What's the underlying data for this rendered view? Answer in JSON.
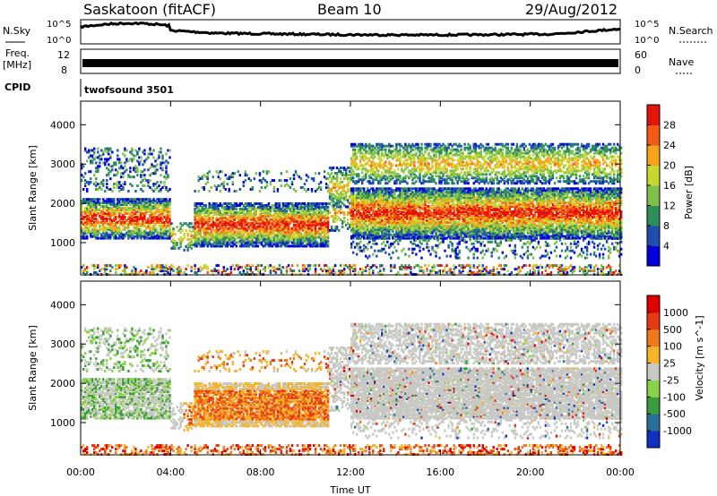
{
  "header": {
    "station": "Saskatoon (fitACF)",
    "beam": "Beam 10",
    "date": "29/Aug/2012"
  },
  "strips": {
    "nsky_label": "N.Sky",
    "nsearch_label": "N.Search",
    "nsky_ticks": [
      "10^5",
      "10^0"
    ],
    "nsearch_ticks": [
      "10^5",
      "10^0"
    ],
    "freq_label_1": "Freq.",
    "freq_label_2": "[MHz]",
    "freq_ticks": [
      "12",
      "8"
    ],
    "nave_label": "Nave",
    "nave_ticks": [
      "60",
      "0"
    ],
    "cpid_label": "CPID",
    "cpid_value": "twofsound 3501"
  },
  "chart_data": [
    {
      "type": "heatmap",
      "name": "power",
      "ylabel": "Slant Range [km]",
      "xlabel": "Time UT",
      "x_ticks": [
        "00:00",
        "04:00",
        "08:00",
        "12:00",
        "16:00",
        "20:00",
        "00:00"
      ],
      "y_ticks": [
        "1000",
        "2000",
        "3000",
        "4000"
      ],
      "xlim_hours": [
        0,
        24
      ],
      "ylim_km": [
        180,
        4600
      ],
      "colorbar": {
        "label": "Power [dB]",
        "ticks": [
          "28",
          "24",
          "20",
          "16",
          "12",
          "8",
          "4"
        ],
        "colors": [
          "#0000dd",
          "#1e4fb0",
          "#2e8f5a",
          "#7fc04a",
          "#c9d830",
          "#f7a21a",
          "#f35a14",
          "#e3140b"
        ]
      }
    },
    {
      "type": "heatmap",
      "name": "velocity",
      "ylabel": "Slant Range [km]",
      "xlabel": "Time UT",
      "x_ticks": [
        "00:00",
        "04:00",
        "08:00",
        "12:00",
        "16:00",
        "20:00",
        "00:00"
      ],
      "y_ticks": [
        "1000",
        "2000",
        "3000",
        "4000"
      ],
      "xlim_hours": [
        0,
        24
      ],
      "ylim_km": [
        180,
        4600
      ],
      "colorbar": {
        "label": "Velocity [m s^-1]",
        "ticks": [
          "1000",
          "500",
          "100",
          "25",
          "-25",
          "-100",
          "-500",
          "-1000"
        ],
        "colors": [
          "#1030c0",
          "#2a6f9a",
          "#3b9c3b",
          "#8bd24a",
          "#c8c8c4",
          "#f6b42a",
          "#ef7a1a",
          "#e63a12",
          "#e10000"
        ]
      }
    }
  ],
  "xaxis": {
    "title": "Time UT"
  }
}
